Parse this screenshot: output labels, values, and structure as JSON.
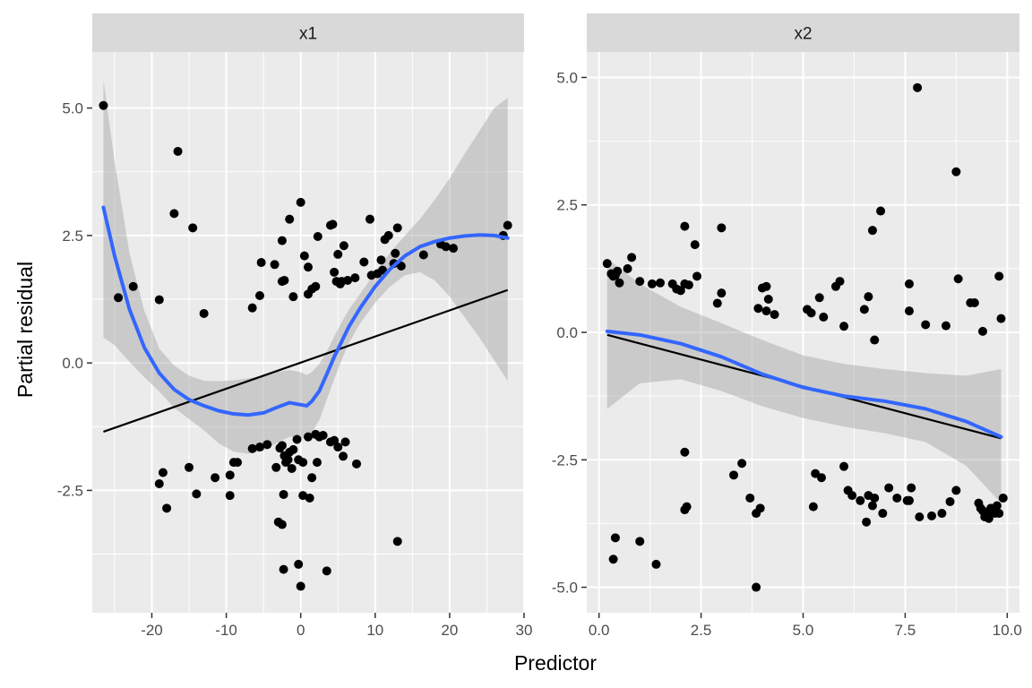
{
  "chart_data": {
    "type": "scatter",
    "xlabel": "Predictor",
    "ylabel": "Partial residual",
    "grid": true,
    "colors": {
      "panel_bg": "#ebebeb",
      "strip_bg": "#d9d9d9",
      "grid": "#ffffff",
      "points": "#000000",
      "smooth": "#3366ff",
      "ribbon": "#999999",
      "fit_line": "#000000"
    },
    "panels": [
      {
        "strip": "x1",
        "xlim": [
          -28,
          30
        ],
        "ylim": [
          -4.9,
          6.1
        ],
        "x_ticks": [
          -20,
          -10,
          0,
          10,
          20,
          30
        ],
        "x_tick_labels": [
          "-20",
          "-10",
          "0",
          "10",
          "20",
          "30"
        ],
        "y_ticks": [
          -2.5,
          0.0,
          2.5,
          5.0
        ],
        "y_tick_labels": [
          "-2.5",
          "0.0",
          "2.5",
          "5.0"
        ],
        "points": [
          [
            -26.5,
            5.05
          ],
          [
            -24.5,
            1.28
          ],
          [
            -22.5,
            1.5
          ],
          [
            -19,
            1.24
          ],
          [
            -16.5,
            4.15
          ],
          [
            -17,
            2.93
          ],
          [
            -14.5,
            2.65
          ],
          [
            -13,
            0.97
          ],
          [
            -19,
            -2.37
          ],
          [
            -18.5,
            -2.15
          ],
          [
            -18,
            -2.85
          ],
          [
            -15,
            -2.05
          ],
          [
            -14,
            -2.57
          ],
          [
            -11.5,
            -2.25
          ],
          [
            -9.5,
            -2.2
          ],
          [
            -9,
            -1.95
          ],
          [
            -8.5,
            -1.95
          ],
          [
            -9.5,
            -2.6
          ],
          [
            -6.5,
            1.08
          ],
          [
            -5.5,
            1.32
          ],
          [
            -5.3,
            1.97
          ],
          [
            -3.5,
            1.93
          ],
          [
            -2.5,
            1.6
          ],
          [
            -2.2,
            1.62
          ],
          [
            -2.5,
            2.4
          ],
          [
            -1.5,
            2.82
          ],
          [
            -1,
            1.3
          ],
          [
            0,
            3.15
          ],
          [
            0.5,
            2.1
          ],
          [
            1,
            1.88
          ],
          [
            1,
            1.35
          ],
          [
            1.5,
            1.45
          ],
          [
            2,
            1.5
          ],
          [
            2.3,
            2.48
          ],
          [
            4,
            2.7
          ],
          [
            4.3,
            2.72
          ],
          [
            4.5,
            1.78
          ],
          [
            4.8,
            1.6
          ],
          [
            5,
            2.13
          ],
          [
            5.3,
            1.55
          ],
          [
            5.5,
            1.6
          ],
          [
            5.8,
            2.3
          ],
          [
            6.3,
            1.62
          ],
          [
            7.3,
            1.67
          ],
          [
            8.5,
            1.98
          ],
          [
            9.3,
            2.82
          ],
          [
            9.5,
            1.72
          ],
          [
            10.3,
            1.75
          ],
          [
            10.8,
            2.02
          ],
          [
            11,
            1.82
          ],
          [
            11.3,
            2.42
          ],
          [
            11.8,
            2.5
          ],
          [
            12.5,
            1.95
          ],
          [
            13,
            2.65
          ],
          [
            13.5,
            1.9
          ],
          [
            12.7,
            2.15
          ],
          [
            16.5,
            2.12
          ],
          [
            18.8,
            2.33
          ],
          [
            20.5,
            2.25
          ],
          [
            19.5,
            2.28
          ],
          [
            27.2,
            2.5
          ],
          [
            27.8,
            2.7
          ],
          [
            -6.5,
            -1.68
          ],
          [
            -5.5,
            -1.65
          ],
          [
            -4.5,
            -1.6
          ],
          [
            -3.3,
            -2.05
          ],
          [
            -2.8,
            -1.67
          ],
          [
            -2.5,
            -1.62
          ],
          [
            -2.2,
            -1.82
          ],
          [
            -2,
            -1.95
          ],
          [
            -1.7,
            -1.9
          ],
          [
            -1.5,
            -1.75
          ],
          [
            -1.2,
            -2.07
          ],
          [
            -1,
            -1.7
          ],
          [
            -0.5,
            -1.5
          ],
          [
            -0.3,
            -1.9
          ],
          [
            0.3,
            -1.95
          ],
          [
            1,
            -1.45
          ],
          [
            2,
            -1.4
          ],
          [
            2.5,
            -1.45
          ],
          [
            3,
            -1.42
          ],
          [
            4,
            -1.55
          ],
          [
            4.5,
            -1.52
          ],
          [
            5,
            -1.65
          ],
          [
            6,
            -1.55
          ],
          [
            5.7,
            -1.83
          ],
          [
            7.5,
            -1.98
          ],
          [
            2.2,
            -1.95
          ],
          [
            1.5,
            -2.25
          ],
          [
            -2.3,
            -2.58
          ],
          [
            0.3,
            -2.6
          ],
          [
            1.2,
            -2.65
          ],
          [
            -3,
            -3.12
          ],
          [
            -2.5,
            -3.17
          ],
          [
            -2.3,
            -4.05
          ],
          [
            -0.3,
            -3.95
          ],
          [
            0,
            -4.38
          ],
          [
            3.5,
            -4.08
          ],
          [
            13,
            -3.5
          ]
        ],
        "smooth": [
          [
            -26.5,
            3.05
          ],
          [
            -25,
            2.1
          ],
          [
            -23,
            1.05
          ],
          [
            -21,
            0.3
          ],
          [
            -19,
            -0.2
          ],
          [
            -17,
            -0.52
          ],
          [
            -15,
            -0.72
          ],
          [
            -13,
            -0.84
          ],
          [
            -11,
            -0.94
          ],
          [
            -9,
            -1.0
          ],
          [
            -7,
            -1.02
          ],
          [
            -5,
            -0.98
          ],
          [
            -3,
            -0.86
          ],
          [
            -1.5,
            -0.78
          ],
          [
            0,
            -0.82
          ],
          [
            0.8,
            -0.84
          ],
          [
            1.5,
            -0.75
          ],
          [
            2.5,
            -0.55
          ],
          [
            3.5,
            -0.22
          ],
          [
            4.5,
            0.12
          ],
          [
            5.5,
            0.42
          ],
          [
            6.5,
            0.72
          ],
          [
            8,
            1.08
          ],
          [
            10,
            1.5
          ],
          [
            12,
            1.84
          ],
          [
            14,
            2.1
          ],
          [
            16,
            2.28
          ],
          [
            18,
            2.38
          ],
          [
            20,
            2.45
          ],
          [
            22,
            2.49
          ],
          [
            24,
            2.51
          ],
          [
            26,
            2.5
          ],
          [
            27.8,
            2.45
          ]
        ],
        "ribbon": [
          [
            -26.5,
            0.5,
            5.55
          ],
          [
            -25,
            0.35,
            3.95
          ],
          [
            -23,
            0.02,
            2.15
          ],
          [
            -21,
            -0.28,
            1.02
          ],
          [
            -19,
            -0.56,
            0.28
          ],
          [
            -17,
            -0.88,
            -0.05
          ],
          [
            -15,
            -1.1,
            -0.25
          ],
          [
            -13,
            -1.32,
            -0.35
          ],
          [
            -11,
            -1.58,
            -0.36
          ],
          [
            -9,
            -1.74,
            -0.34
          ],
          [
            -7,
            -1.78,
            -0.3
          ],
          [
            -5,
            -1.72,
            -0.25
          ],
          [
            -3,
            -1.55,
            -0.17
          ],
          [
            -1.5,
            -1.45,
            -0.14
          ],
          [
            0,
            -1.48,
            -0.18
          ],
          [
            0.8,
            -1.46,
            -0.24
          ],
          [
            1.5,
            -1.36,
            -0.18
          ],
          [
            2.5,
            -1.12,
            -0.02
          ],
          [
            3.5,
            -0.72,
            0.22
          ],
          [
            4.5,
            -0.32,
            0.52
          ],
          [
            5.5,
            0.06,
            0.8
          ],
          [
            6.5,
            0.4,
            1.05
          ],
          [
            8,
            0.78,
            1.36
          ],
          [
            10,
            1.18,
            1.78
          ],
          [
            12,
            1.5,
            2.16
          ],
          [
            14,
            1.72,
            2.5
          ],
          [
            16,
            1.78,
            2.82
          ],
          [
            18,
            1.62,
            3.2
          ],
          [
            20,
            1.3,
            3.62
          ],
          [
            22,
            0.9,
            4.1
          ],
          [
            24,
            0.5,
            4.55
          ],
          [
            26,
            0.05,
            5.0
          ],
          [
            27.8,
            -0.35,
            5.2
          ]
        ],
        "fit_line": [
          [
            -26.5,
            -1.35
          ],
          [
            27.8,
            1.43
          ]
        ]
      },
      {
        "strip": "x2",
        "xlim": [
          -0.3,
          10.3
        ],
        "ylim": [
          -5.5,
          5.5
        ],
        "x_ticks": [
          0.0,
          2.5,
          5.0,
          7.5,
          10.0
        ],
        "x_tick_labels": [
          "0.0",
          "2.5",
          "5.0",
          "7.5",
          "10.0"
        ],
        "y_ticks": [
          -5.0,
          -2.5,
          0.0,
          2.5,
          5.0
        ],
        "y_tick_labels": [
          "-5.0",
          "-2.5",
          "0.0",
          "2.5",
          "5.0"
        ],
        "points": [
          [
            0.2,
            1.35
          ],
          [
            0.3,
            1.15
          ],
          [
            0.35,
            1.1
          ],
          [
            0.4,
            1.12
          ],
          [
            0.45,
            1.2
          ],
          [
            0.5,
            0.97
          ],
          [
            0.7,
            1.25
          ],
          [
            0.8,
            1.47
          ],
          [
            1.0,
            1.0
          ],
          [
            1.3,
            0.95
          ],
          [
            1.5,
            0.97
          ],
          [
            1.8,
            0.95
          ],
          [
            1.9,
            0.85
          ],
          [
            2.0,
            0.82
          ],
          [
            2.1,
            0.95
          ],
          [
            2.2,
            0.93
          ],
          [
            2.4,
            1.1
          ],
          [
            2.1,
            2.08
          ],
          [
            2.35,
            1.72
          ],
          [
            3.0,
            2.05
          ],
          [
            2.9,
            0.57
          ],
          [
            3.0,
            0.77
          ],
          [
            3.9,
            0.47
          ],
          [
            4.0,
            0.87
          ],
          [
            4.1,
            0.9
          ],
          [
            4.1,
            0.42
          ],
          [
            4.15,
            0.65
          ],
          [
            4.3,
            0.35
          ],
          [
            5.1,
            0.45
          ],
          [
            5.2,
            0.38
          ],
          [
            5.4,
            0.68
          ],
          [
            5.5,
            0.3
          ],
          [
            5.8,
            0.9
          ],
          [
            5.9,
            1.0
          ],
          [
            6.0,
            0.12
          ],
          [
            6.5,
            0.45
          ],
          [
            6.6,
            0.7
          ],
          [
            6.7,
            2.0
          ],
          [
            6.9,
            2.38
          ],
          [
            6.75,
            -0.15
          ],
          [
            7.6,
            0.95
          ],
          [
            7.6,
            0.42
          ],
          [
            7.8,
            4.8
          ],
          [
            8.0,
            0.15
          ],
          [
            8.5,
            0.13
          ],
          [
            8.75,
            3.15
          ],
          [
            8.8,
            1.05
          ],
          [
            9.1,
            0.58
          ],
          [
            9.2,
            0.58
          ],
          [
            9.4,
            0.02
          ],
          [
            9.8,
            1.1
          ],
          [
            9.85,
            0.27
          ],
          [
            0.35,
            -4.45
          ],
          [
            0.4,
            -4.03
          ],
          [
            1.0,
            -4.1
          ],
          [
            1.4,
            -4.55
          ],
          [
            2.1,
            -3.48
          ],
          [
            2.15,
            -3.42
          ],
          [
            2.1,
            -2.35
          ],
          [
            3.3,
            -2.8
          ],
          [
            3.5,
            -2.57
          ],
          [
            3.7,
            -3.25
          ],
          [
            3.85,
            -3.55
          ],
          [
            3.95,
            -3.45
          ],
          [
            3.85,
            -5.0
          ],
          [
            5.25,
            -3.42
          ],
          [
            5.3,
            -2.77
          ],
          [
            5.45,
            -2.85
          ],
          [
            6.0,
            -2.63
          ],
          [
            6.1,
            -3.1
          ],
          [
            6.2,
            -3.2
          ],
          [
            6.4,
            -3.3
          ],
          [
            6.6,
            -3.2
          ],
          [
            6.7,
            -3.4
          ],
          [
            6.55,
            -3.72
          ],
          [
            6.75,
            -3.25
          ],
          [
            6.95,
            -3.55
          ],
          [
            7.1,
            -3.05
          ],
          [
            7.3,
            -3.25
          ],
          [
            7.55,
            -3.3
          ],
          [
            7.6,
            -3.3
          ],
          [
            7.65,
            -3.05
          ],
          [
            7.85,
            -3.62
          ],
          [
            8.15,
            -3.6
          ],
          [
            8.4,
            -3.55
          ],
          [
            8.6,
            -3.32
          ],
          [
            8.75,
            -3.1
          ],
          [
            9.3,
            -3.35
          ],
          [
            9.35,
            -3.45
          ],
          [
            9.4,
            -3.5
          ],
          [
            9.45,
            -3.62
          ],
          [
            9.5,
            -3.55
          ],
          [
            9.55,
            -3.65
          ],
          [
            9.6,
            -3.45
          ],
          [
            9.7,
            -3.55
          ],
          [
            9.75,
            -3.4
          ],
          [
            9.8,
            -3.55
          ],
          [
            9.9,
            -3.25
          ]
        ],
        "smooth": [
          [
            0.2,
            0.02
          ],
          [
            1.0,
            -0.05
          ],
          [
            2.0,
            -0.22
          ],
          [
            3.0,
            -0.48
          ],
          [
            4.0,
            -0.82
          ],
          [
            5.0,
            -1.08
          ],
          [
            6.0,
            -1.25
          ],
          [
            7.0,
            -1.35
          ],
          [
            8.0,
            -1.5
          ],
          [
            9.0,
            -1.75
          ],
          [
            9.85,
            -2.05
          ]
        ],
        "ribbon": [
          [
            0.2,
            -1.5,
            1.45
          ],
          [
            1.0,
            -1.0,
            0.95
          ],
          [
            2.0,
            -0.92,
            0.5
          ],
          [
            3.0,
            -1.15,
            0.18
          ],
          [
            4.0,
            -1.45,
            -0.15
          ],
          [
            5.0,
            -1.68,
            -0.45
          ],
          [
            6.0,
            -1.85,
            -0.62
          ],
          [
            7.0,
            -1.98,
            -0.72
          ],
          [
            8.0,
            -2.15,
            -0.8
          ],
          [
            9.0,
            -2.62,
            -0.85
          ],
          [
            9.85,
            -3.35,
            -0.72
          ]
        ],
        "fit_line": [
          [
            0.2,
            -0.05
          ],
          [
            9.85,
            -2.08
          ]
        ]
      }
    ]
  }
}
